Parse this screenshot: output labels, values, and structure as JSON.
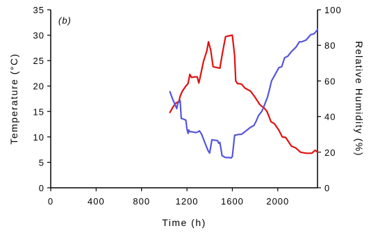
{
  "chart_data": {
    "type": "line",
    "panel_label": "(b)",
    "xlabel": "Time (h)",
    "ylabel_left": "Temperature (°C)",
    "ylabel_right": "Relative Humidity (%)",
    "xlim": [
      0,
      2350
    ],
    "ylim_left": [
      0,
      35
    ],
    "ylim_right": [
      0,
      100
    ],
    "x_ticks": [
      0,
      400,
      800,
      1200,
      1600,
      2000
    ],
    "x_tick_labels": [
      "0",
      "400",
      "800",
      "1200",
      "1600",
      "2000"
    ],
    "y_left_ticks": [
      0,
      5,
      10,
      15,
      20,
      25,
      30,
      35
    ],
    "y_left_tick_labels": [
      "0",
      "5",
      "10",
      "15",
      "20",
      "25",
      "30",
      "35"
    ],
    "y_right_ticks": [
      0,
      20,
      40,
      60,
      80,
      100
    ],
    "y_right_tick_labels": [
      "0",
      "20",
      "40",
      "60",
      "80",
      "100"
    ],
    "grid": false,
    "series": [
      {
        "axis": "left",
        "color": "#e01010",
        "x": [
          1050,
          1080,
          1100,
          1130,
          1140,
          1160,
          1190,
          1210,
          1225,
          1240,
          1270,
          1290,
          1305,
          1315,
          1345,
          1375,
          1390,
          1410,
          1430,
          1490,
          1510,
          1540,
          1555,
          1600,
          1620,
          1630,
          1645,
          1680,
          1710,
          1760,
          1800,
          1840,
          1860,
          1880,
          1905,
          1940,
          1970,
          2010,
          2040,
          2070,
          2120,
          2160,
          2200,
          2250,
          2300,
          2330,
          2350
        ],
        "y": [
          14.8,
          16.0,
          16.6,
          17.0,
          18.0,
          19.0,
          20.0,
          20.5,
          22.3,
          21.7,
          21.8,
          21.8,
          20.6,
          21.6,
          24.8,
          26.9,
          28.7,
          27.0,
          23.8,
          23.5,
          26.1,
          29.7,
          29.8,
          30.0,
          26.0,
          21.0,
          20.5,
          20.4,
          19.6,
          19.0,
          17.8,
          16.4,
          16.0,
          15.7,
          15.0,
          13.0,
          12.6,
          11.3,
          10.0,
          9.9,
          8.2,
          7.8,
          7.0,
          6.8,
          6.8,
          7.4,
          7.0
        ]
      },
      {
        "axis": "right",
        "color": "#5555dd",
        "x": [
          1050,
          1070,
          1100,
          1110,
          1120,
          1140,
          1150,
          1170,
          1190,
          1200,
          1210,
          1215,
          1225,
          1240,
          1280,
          1300,
          1310,
          1330,
          1360,
          1385,
          1400,
          1420,
          1470,
          1480,
          1490,
          1510,
          1540,
          1570,
          1590,
          1600,
          1620,
          1660,
          1680,
          1720,
          1760,
          1790,
          1810,
          1830,
          1860,
          1880,
          1910,
          1930,
          1945,
          1980,
          2010,
          2035,
          2060,
          2090,
          2120,
          2160,
          2190,
          2210,
          2250,
          2290,
          2320,
          2340,
          2350
        ],
        "y": [
          54.0,
          50.5,
          46.0,
          44.5,
          47.5,
          49.0,
          39.0,
          38.5,
          38.0,
          33.0,
          30.5,
          32.5,
          31.5,
          31.5,
          31.0,
          31.5,
          32.0,
          30.0,
          25.0,
          21.0,
          19.5,
          27.0,
          26.5,
          25.0,
          25.5,
          18.0,
          17.0,
          17.0,
          16.8,
          17.5,
          29.5,
          30.0,
          30.0,
          32.0,
          34.0,
          35.0,
          37.5,
          40.5,
          43.0,
          46.0,
          51.0,
          56.0,
          60.0,
          64.0,
          67.5,
          68.0,
          73.0,
          74.0,
          76.5,
          79.0,
          82.0,
          82.0,
          83.0,
          86.0,
          86.5,
          88.0,
          89.0
        ]
      }
    ]
  }
}
